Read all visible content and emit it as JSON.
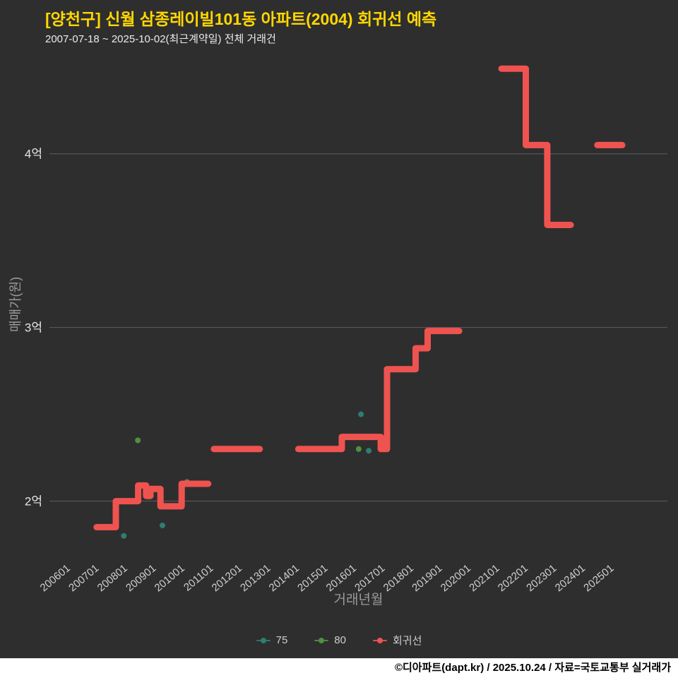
{
  "chart_data": {
    "type": "line",
    "title": "[양천구] 신월 삼종레이빌101동 아파트(2004) 회귀선 예측",
    "subtitle": "2007-07-18 ~ 2025-10-02(최근계약일) 전체 거래건",
    "xlabel": "거래년월",
    "ylabel": "매매가(원)",
    "y_unit": "억원",
    "grid": true,
    "legend_position": "bottom",
    "axis_ranges": {
      "x": [
        2005.4,
        2027.0
      ],
      "y": [
        1.62,
        4.56
      ]
    },
    "y_ticks": [
      {
        "value": 2,
        "label": "2억"
      },
      {
        "value": 3,
        "label": "3억"
      },
      {
        "value": 4,
        "label": "4억"
      }
    ],
    "x_ticks": [
      {
        "x": 2006,
        "label": "200601"
      },
      {
        "x": 2007,
        "label": "200701"
      },
      {
        "x": 2008,
        "label": "200801"
      },
      {
        "x": 2009,
        "label": "200901"
      },
      {
        "x": 2010,
        "label": "201001"
      },
      {
        "x": 2011,
        "label": "201101"
      },
      {
        "x": 2012,
        "label": "201201"
      },
      {
        "x": 2013,
        "label": "201301"
      },
      {
        "x": 2014,
        "label": "201401"
      },
      {
        "x": 2015,
        "label": "201501"
      },
      {
        "x": 2016,
        "label": "201601"
      },
      {
        "x": 2017,
        "label": "201701"
      },
      {
        "x": 2018,
        "label": "201801"
      },
      {
        "x": 2019,
        "label": "201901"
      },
      {
        "x": 2020,
        "label": "202001"
      },
      {
        "x": 2021,
        "label": "202101"
      },
      {
        "x": 2022,
        "label": "202201"
      },
      {
        "x": 2023,
        "label": "202301"
      },
      {
        "x": 2024,
        "label": "202401"
      },
      {
        "x": 2025,
        "label": "202501"
      }
    ],
    "series": [
      {
        "name": "75",
        "type": "scatter",
        "color": "#2f7d72",
        "points": [
          [
            2008.0,
            1.8
          ],
          [
            2009.35,
            1.86
          ],
          [
            2016.29,
            2.5
          ],
          [
            2016.56,
            2.29
          ]
        ]
      },
      {
        "name": "80",
        "type": "scatter",
        "color": "#4e9140",
        "points": [
          [
            2008.49,
            2.35
          ],
          [
            2010.21,
            2.11
          ],
          [
            2016.21,
            2.3
          ]
        ]
      },
      {
        "name": "회귀선",
        "type": "step-line",
        "color": "#ef5350",
        "segments": [
          [
            [
              2007.05,
              1.85
            ],
            [
              2007.72,
              1.85
            ],
            [
              2007.72,
              2.0
            ],
            [
              2008.5,
              2.0
            ],
            [
              2008.5,
              2.09
            ],
            [
              2008.78,
              2.09
            ],
            [
              2008.78,
              2.03
            ],
            [
              2008.93,
              2.03
            ],
            [
              2008.93,
              2.07
            ],
            [
              2009.28,
              2.07
            ],
            [
              2009.28,
              1.97
            ],
            [
              2010.02,
              1.97
            ],
            [
              2010.02,
              2.1
            ],
            [
              2010.95,
              2.1
            ]
          ],
          [
            [
              2011.15,
              2.3
            ],
            [
              2012.75,
              2.3
            ]
          ],
          [
            [
              2014.1,
              2.3
            ],
            [
              2015.62,
              2.3
            ],
            [
              2015.62,
              2.37
            ],
            [
              2016.98,
              2.37
            ],
            [
              2016.98,
              2.3
            ],
            [
              2017.2,
              2.3
            ],
            [
              2017.2,
              2.76
            ],
            [
              2018.2,
              2.76
            ],
            [
              2018.2,
              2.88
            ],
            [
              2018.62,
              2.88
            ],
            [
              2018.62,
              2.98
            ],
            [
              2019.72,
              2.98
            ]
          ],
          [
            [
              2021.2,
              4.49
            ],
            [
              2022.05,
              4.49
            ],
            [
              2022.05,
              4.05
            ],
            [
              2022.8,
              4.05
            ],
            [
              2022.8,
              3.59
            ],
            [
              2023.62,
              3.59
            ]
          ],
          [
            [
              2024.55,
              4.05
            ],
            [
              2025.42,
              4.05
            ]
          ]
        ]
      }
    ],
    "colors": {
      "background": "#2e2e2e",
      "title": "#ffd700",
      "grid": "#5d5d5d",
      "y_tick_label": "#e6e6e6",
      "x_tick_label": "#d0d0d0",
      "axis_title": "#9a9a9a",
      "regression_line": "#ef5350",
      "series_75": "#2f7d72",
      "series_80": "#4e9140",
      "footer_background": "#ffffff"
    }
  },
  "footer": {
    "text": "©디아파트(dapt.kr) / 2025.10.24 / 자료=국토교통부 실거래가"
  }
}
